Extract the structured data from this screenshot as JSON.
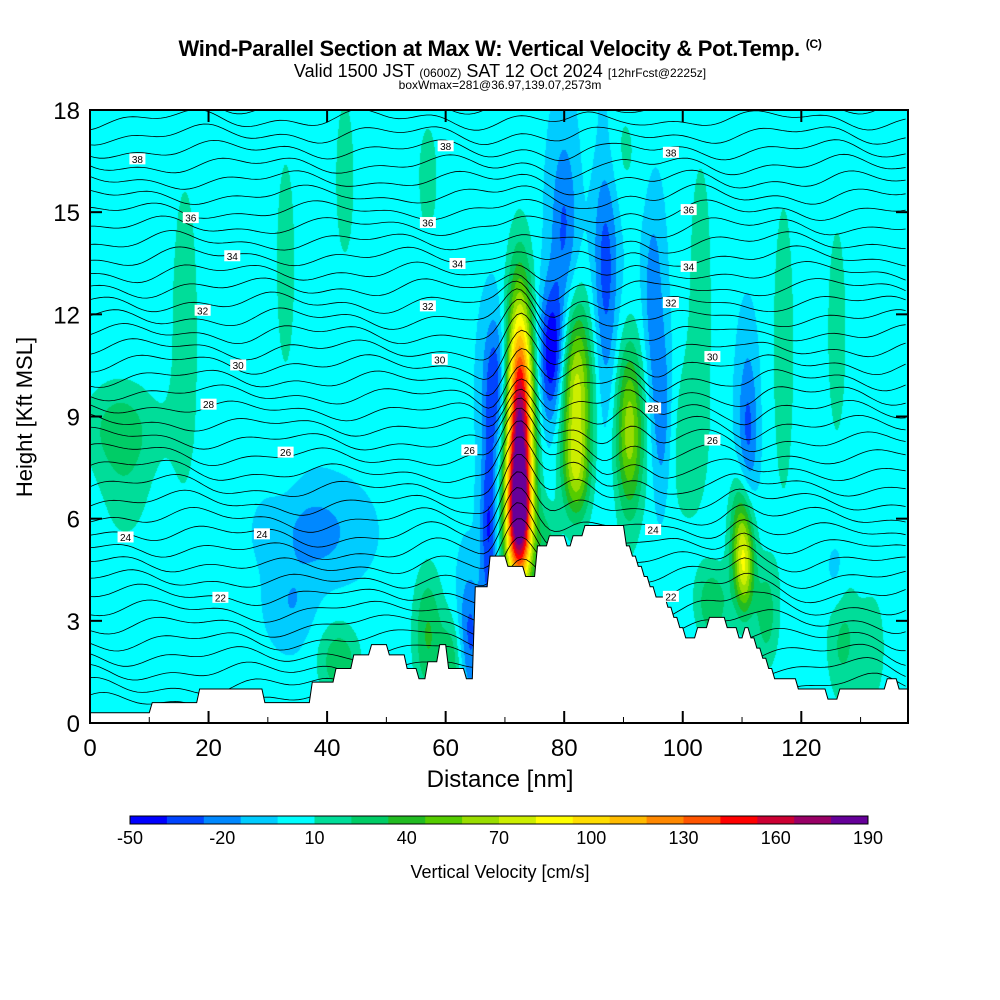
{
  "title": {
    "main": "Wind-Parallel Section at Max W: Vertical Velocity & Pot.Temp.",
    "copyright": "(C)",
    "valid_pre": "Valid 1500 JST",
    "valid_zulu": "(0600Z)",
    "valid_date": "SAT 12 Oct 2024",
    "forecast": "[12hrFcst@2225z]",
    "boxline": "boxWmax=281@36.97,139.07,2573m"
  },
  "colorbar": {
    "label": "Vertical Velocity [cm/s]",
    "tick_labels": [
      "-50",
      "-20",
      "10",
      "40",
      "70",
      "100",
      "130",
      "160",
      "190"
    ],
    "colors": [
      "#0000ff",
      "#0044ff",
      "#0088ff",
      "#00ccff",
      "#00ffff",
      "#00dd99",
      "#00cc66",
      "#22bb22",
      "#55cc00",
      "#99dd00",
      "#ccee00",
      "#ffff00",
      "#ffdd00",
      "#ffbb00",
      "#ff8800",
      "#ff5500",
      "#ff0000",
      "#cc0033",
      "#990066",
      "#660099"
    ]
  },
  "chart_data": {
    "type": "heatmap",
    "xlabel": "Distance [nm]",
    "ylabel": "Height [Kft MSL]",
    "xlim": [
      0,
      138
    ],
    "ylim": [
      0,
      18
    ],
    "x_ticks": [
      0,
      20,
      40,
      60,
      80,
      100,
      120
    ],
    "y_ticks": [
      0,
      3,
      6,
      9,
      12,
      15,
      18
    ],
    "colorbar_range": [
      -50,
      190
    ],
    "colorbar_step": 12,
    "background_velocity_cm_s": 0,
    "terrain": {
      "x": [
        0,
        10,
        10.5,
        18,
        18.5,
        29,
        29.5,
        37,
        37.5,
        41,
        41.5,
        44,
        44.5,
        47,
        47.5,
        50,
        50.5,
        53,
        53.5,
        55,
        55.5,
        56.5,
        57,
        58.5,
        59,
        60,
        60.5,
        63,
        63.5,
        64.5,
        65,
        67,
        67.5,
        70,
        70.5,
        73,
        73.5,
        75,
        75.5,
        77,
        77.5,
        80,
        80.5,
        81,
        81.5,
        83,
        83.5,
        90,
        90.5,
        91,
        91.5,
        92,
        92.5,
        93,
        93.5,
        94,
        94.5,
        95,
        95.5,
        97,
        97.5,
        98,
        98.5,
        99,
        99.5,
        100,
        100.5,
        102,
        102.5,
        104,
        104.5,
        107,
        107.5,
        109,
        109.5,
        110,
        110.5,
        111,
        111.5,
        112,
        112.5,
        113,
        113.5,
        114,
        114.5,
        115,
        115.5,
        119,
        119.5,
        124,
        124.5,
        126,
        126.5,
        134,
        134.5,
        136,
        136.5,
        138
      ],
      "height": [
        0.3,
        0.3,
        0.6,
        0.6,
        1.0,
        1.0,
        0.6,
        0.6,
        1.2,
        1.2,
        1.6,
        1.6,
        2.0,
        2.0,
        2.3,
        2.3,
        2.0,
        2.0,
        1.6,
        1.6,
        1.3,
        1.3,
        1.8,
        1.8,
        2.3,
        2.3,
        1.6,
        1.6,
        1.3,
        1.3,
        4.0,
        4.0,
        4.9,
        4.9,
        4.6,
        4.6,
        4.3,
        4.3,
        5.2,
        5.2,
        5.5,
        5.5,
        5.2,
        5.2,
        5.5,
        5.5,
        5.8,
        5.8,
        5.2,
        5.2,
        4.9,
        4.9,
        4.6,
        4.6,
        4.3,
        4.3,
        4.0,
        4.0,
        3.7,
        3.7,
        3.4,
        3.4,
        3.1,
        3.1,
        2.8,
        2.8,
        2.5,
        2.5,
        2.8,
        2.8,
        3.1,
        3.1,
        2.8,
        2.8,
        2.5,
        2.5,
        2.8,
        2.8,
        2.5,
        2.5,
        2.2,
        2.2,
        1.9,
        1.9,
        1.6,
        1.6,
        1.3,
        1.3,
        1.0,
        1.0,
        0.7,
        0.7,
        1.0,
        1.0,
        1.3,
        1.3,
        1.0,
        1.0
      ]
    },
    "vertical_velocity_features": [
      {
        "x": 72.5,
        "z": 8.6,
        "sx": 1.6,
        "sz": 2.7,
        "w": 180
      },
      {
        "x": 72.3,
        "z": 5.9,
        "sx": 1.6,
        "sz": 1.3,
        "w": 110
      },
      {
        "x": 82,
        "z": 9.8,
        "sx": 2.0,
        "sz": 1.8,
        "w": 75
      },
      {
        "x": 82,
        "z": 7.3,
        "sx": 1.6,
        "sz": 1.0,
        "w": 45
      },
      {
        "x": 91,
        "z": 8.6,
        "sx": 1.7,
        "sz": 1.8,
        "w": 65
      },
      {
        "x": 110,
        "z": 5.4,
        "sx": 1.4,
        "sz": 1.2,
        "w": 62
      },
      {
        "x": 110.5,
        "z": 4.3,
        "sx": 1.1,
        "sz": 0.9,
        "w": 40
      },
      {
        "x": 78,
        "z": 10.8,
        "sx": 1.6,
        "sz": 1.4,
        "w": -55
      },
      {
        "x": 68.5,
        "z": 10.0,
        "sx": 1.5,
        "sz": 1.4,
        "w": -38
      },
      {
        "x": 67.3,
        "z": 5.8,
        "sx": 1.0,
        "sz": 2.0,
        "w": -40
      },
      {
        "x": 64,
        "z": 2.6,
        "sx": 1.4,
        "sz": 1.3,
        "w": -30
      },
      {
        "x": 87,
        "z": 13.5,
        "sx": 1.5,
        "sz": 3.0,
        "w": -32
      },
      {
        "x": 80,
        "z": 14.5,
        "sx": 1.6,
        "sz": 2.0,
        "w": -28
      },
      {
        "x": 96.5,
        "z": 9.0,
        "sx": 1.2,
        "sz": 1.8,
        "w": -28
      },
      {
        "x": 95,
        "z": 12.5,
        "sx": 1.2,
        "sz": 2.0,
        "w": -22
      },
      {
        "x": 111,
        "z": 8.5,
        "sx": 1.2,
        "sz": 1.8,
        "w": -30
      },
      {
        "x": 38,
        "z": 5.6,
        "sx": 5.0,
        "sz": 0.9,
        "w": -20
      },
      {
        "x": 34,
        "z": 3.5,
        "sx": 2.5,
        "sz": 0.8,
        "w": -14
      },
      {
        "x": 42,
        "z": 1.8,
        "sx": 2.5,
        "sz": 0.8,
        "w": 32
      },
      {
        "x": 57,
        "z": 2.6,
        "sx": 1.8,
        "sz": 1.4,
        "w": 35
      },
      {
        "x": 61,
        "z": 1.7,
        "sx": 1.4,
        "sz": 1.0,
        "w": 30
      },
      {
        "x": 77,
        "z": 5.2,
        "sx": 1.4,
        "sz": 0.9,
        "w": 25
      },
      {
        "x": 105,
        "z": 3.5,
        "sx": 2.0,
        "sz": 0.8,
        "w": 32
      },
      {
        "x": 114,
        "z": 3.2,
        "sx": 1.4,
        "sz": 1.1,
        "w": 28
      },
      {
        "x": 127,
        "z": 2.5,
        "sx": 2.0,
        "sz": 1.4,
        "w": 25
      },
      {
        "x": 126,
        "z": 4.3,
        "sx": 1.4,
        "sz": 0.9,
        "w": -14
      },
      {
        "x": 132,
        "z": 2.2,
        "sx": 1.6,
        "sz": 1.2,
        "w": 20
      },
      {
        "x": 5,
        "z": 8.7,
        "sx": 4.5,
        "sz": 1.0,
        "w": 25
      },
      {
        "x": 6,
        "z": 6.8,
        "sx": 3.5,
        "sz": 1.4,
        "w": 14
      },
      {
        "x": 16,
        "z": 11.5,
        "sx": 2.5,
        "sz": 5.0,
        "w": 14
      },
      {
        "x": 33,
        "z": 13.5,
        "sx": 2.0,
        "sz": 4.0,
        "w": 13
      },
      {
        "x": 43,
        "z": 16.0,
        "sx": 2.0,
        "sz": 3.0,
        "w": 13
      },
      {
        "x": 57,
        "z": 16.0,
        "sx": 2.0,
        "sz": 2.0,
        "w": 13
      },
      {
        "x": 103,
        "z": 13.0,
        "sx": 2.0,
        "sz": 4.0,
        "w": 14
      },
      {
        "x": 117,
        "z": 11.0,
        "sx": 2.0,
        "sz": 5.0,
        "w": 14
      },
      {
        "x": 126,
        "z": 11.5,
        "sx": 2.0,
        "sz": 4.0,
        "w": 13
      },
      {
        "x": 89,
        "z": 16.8,
        "sx": 3.0,
        "sz": 1.4,
        "w": 14
      },
      {
        "x": 86,
        "z": 3.4,
        "sx": 4.0,
        "sz": 1.0,
        "w": 18
      },
      {
        "x": 100,
        "z": 8.0,
        "sx": 3.0,
        "sz": 2.0,
        "w": 14
      }
    ],
    "theta_contours": [
      {
        "label": "22",
        "z": 3.7,
        "label_x": [
          22,
          98
        ]
      },
      {
        "label": "24",
        "z": 5.4,
        "label_x": [
          6,
          29,
          95
        ]
      },
      {
        "label": "26",
        "z": 7.9,
        "label_x": [
          33,
          64,
          105
        ]
      },
      {
        "label": "28",
        "z": 9.2,
        "label_x": [
          20,
          95
        ]
      },
      {
        "label": "30",
        "z": 10.7,
        "label_x": [
          25,
          59,
          105
        ]
      },
      {
        "label": "32",
        "z": 12.1,
        "label_x": [
          19,
          57,
          98
        ]
      },
      {
        "label": "34",
        "z": 13.6,
        "label_x": [
          24,
          62,
          101
        ]
      },
      {
        "label": "36",
        "z": 14.9,
        "label_x": [
          17,
          57,
          101
        ]
      },
      {
        "label": "38",
        "z": 16.6,
        "label_x": [
          8,
          60,
          98
        ]
      }
    ]
  }
}
